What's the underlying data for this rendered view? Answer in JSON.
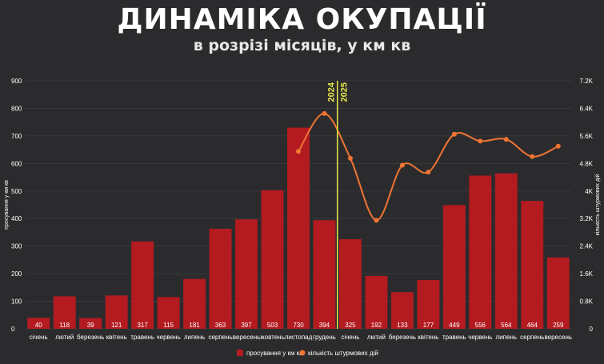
{
  "title": "ДИНАМІКА ОКУПАЦІЇ",
  "subtitle": "в розрізі місяців, у км кв",
  "colors": {
    "bar": "#b31b20",
    "line": "#f07432",
    "divider": "#e8e84a",
    "grid": "#3a3a3d"
  },
  "chart_data": {
    "type": "bar",
    "categories": [
      "січень",
      "лютий",
      "березень",
      "квітень",
      "травень",
      "червень",
      "липень",
      "серпень",
      "вересень",
      "жовтень",
      "листопад",
      "грудень",
      "січень",
      "лютий",
      "березень",
      "квітень",
      "травень",
      "червень",
      "липень",
      "серпень",
      "вересень"
    ],
    "series": [
      {
        "name": "просування у км кв",
        "type": "bar",
        "axis": "left",
        "values": [
          40,
          118,
          39,
          121,
          317,
          115,
          181,
          363,
          397,
          503,
          730,
          394,
          325,
          192,
          133,
          177,
          449,
          556,
          564,
          464,
          259
        ]
      },
      {
        "name": "кількість штурмових дій",
        "type": "line",
        "axis": "right",
        "points": [
          [
            10,
            5150
          ],
          [
            11,
            6250
          ],
          [
            12,
            4950
          ],
          [
            13,
            3150
          ],
          [
            14,
            4750
          ],
          [
            15,
            4550
          ],
          [
            16,
            5650
          ],
          [
            17,
            5450
          ],
          [
            18,
            5500
          ],
          [
            19,
            5000
          ],
          [
            20,
            5300
          ]
        ]
      }
    ],
    "ylabel": "просування у км кв",
    "y2label": "кількість штурмових дій",
    "ylim": [
      0,
      900
    ],
    "yticks": [
      "0",
      "100",
      "200",
      "300",
      "400",
      "500",
      "600",
      "700",
      "800",
      "900"
    ],
    "y2lim": [
      0,
      7200
    ],
    "y2ticks": [
      "0",
      "0.8K",
      "1.6K",
      "2.4K",
      "3.2K",
      "4K",
      "4.8K",
      "5.6K",
      "6.4K",
      "7.2K"
    ],
    "divider": {
      "after_index": 11,
      "left_label": "2024",
      "right_label": "2025"
    },
    "data_labels": true,
    "legend": "bottom-center"
  }
}
